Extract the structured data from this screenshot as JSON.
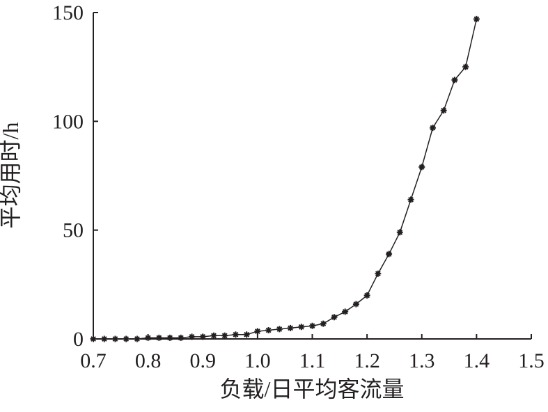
{
  "chart_data": {
    "type": "line",
    "xlabel": "负载/日平均客流量",
    "ylabel": "平均用时/h",
    "x": [
      0.7,
      0.72,
      0.74,
      0.76,
      0.78,
      0.8,
      0.82,
      0.84,
      0.86,
      0.88,
      0.9,
      0.92,
      0.94,
      0.96,
      0.98,
      1.0,
      1.02,
      1.04,
      1.06,
      1.08,
      1.1,
      1.12,
      1.14,
      1.16,
      1.18,
      1.2,
      1.22,
      1.24,
      1.26,
      1.28,
      1.3,
      1.32,
      1.34,
      1.36,
      1.38,
      1.4
    ],
    "values": [
      0,
      0,
      0,
      0,
      0,
      0.5,
      0.5,
      0.5,
      0.5,
      1,
      1,
      1.5,
      1.5,
      2,
      2,
      3.5,
      4,
      4.5,
      5,
      5.5,
      6,
      7,
      10,
      12.5,
      16,
      20,
      30,
      39,
      49,
      64,
      79,
      97,
      105,
      119,
      125,
      147
    ],
    "color": "#231f20",
    "xlim": [
      0.7,
      1.5
    ],
    "xticks": [
      0.7,
      0.8,
      0.9,
      {
        "value": 1,
        "label": "1.0"
      },
      1.1,
      1.2,
      1.3,
      1.4,
      1.5
    ],
    "ylim": [
      0,
      150
    ],
    "yticks": [
      0,
      50,
      100,
      150
    ]
  }
}
